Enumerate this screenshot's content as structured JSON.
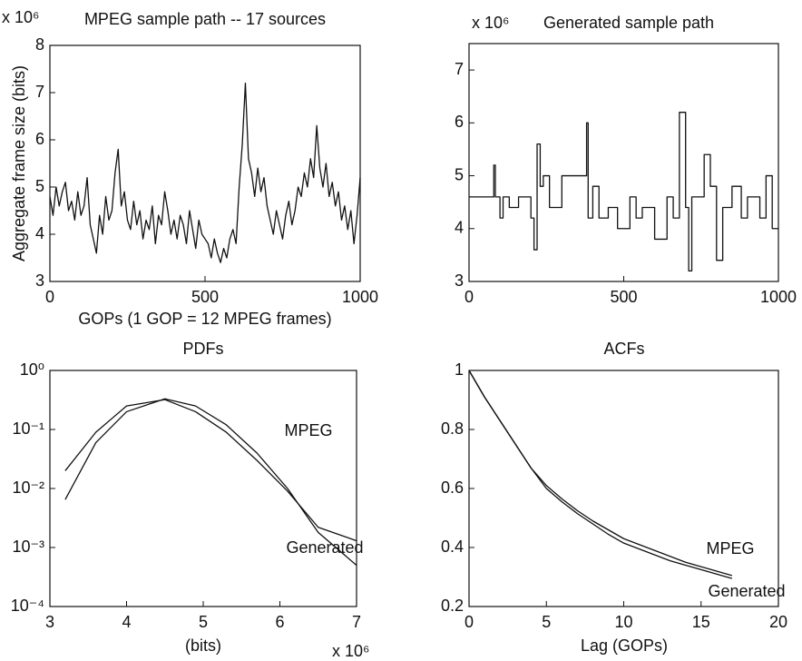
{
  "chart_data": [
    {
      "type": "line",
      "title": "MPEG sample path -- 17 sources",
      "y_exponent_label": "x 10⁶",
      "x_label": "GOPs (1 GOP = 12 MPEG frames)",
      "y_label": "Aggregate frame size (bits)",
      "xlim": [
        0,
        1000
      ],
      "xticks": [
        0,
        500,
        1000
      ],
      "ylim": [
        3,
        8
      ],
      "yticks": [
        3,
        4,
        5,
        6,
        7,
        8
      ],
      "grid": false,
      "x": [
        0,
        10,
        20,
        30,
        40,
        50,
        60,
        70,
        80,
        90,
        100,
        110,
        120,
        130,
        140,
        150,
        160,
        170,
        180,
        190,
        200,
        210,
        220,
        230,
        240,
        250,
        260,
        270,
        280,
        290,
        300,
        310,
        320,
        330,
        340,
        350,
        360,
        370,
        380,
        390,
        400,
        410,
        420,
        430,
        440,
        450,
        460,
        470,
        480,
        490,
        500,
        510,
        520,
        530,
        540,
        550,
        560,
        570,
        580,
        590,
        600,
        610,
        620,
        630,
        640,
        650,
        660,
        670,
        680,
        690,
        700,
        710,
        720,
        730,
        740,
        750,
        760,
        770,
        780,
        790,
        800,
        810,
        820,
        830,
        840,
        850,
        860,
        870,
        880,
        890,
        900,
        910,
        920,
        930,
        940,
        950,
        960,
        970,
        980,
        990,
        1000
      ],
      "series": [
        {
          "name": "MPEG",
          "color": "#111111",
          "values": [
            4.8,
            4.4,
            5.0,
            4.6,
            4.9,
            5.1,
            4.5,
            4.7,
            4.3,
            4.9,
            4.4,
            4.6,
            5.2,
            4.2,
            3.9,
            3.6,
            4.4,
            4.0,
            4.8,
            4.3,
            4.5,
            5.3,
            5.8,
            4.6,
            4.9,
            4.3,
            4.1,
            4.7,
            4.2,
            4.5,
            3.9,
            4.3,
            4.1,
            4.6,
            3.8,
            4.4,
            4.2,
            4.9,
            4.5,
            4.0,
            4.3,
            3.9,
            4.4,
            4.2,
            3.8,
            4.5,
            4.1,
            3.7,
            4.3,
            4.0,
            3.9,
            3.8,
            3.5,
            3.9,
            3.6,
            3.4,
            3.7,
            3.5,
            3.9,
            4.1,
            3.8,
            5.0,
            5.9,
            7.2,
            5.6,
            5.3,
            4.8,
            5.4,
            4.9,
            5.2,
            4.6,
            4.3,
            4.0,
            4.5,
            4.2,
            3.9,
            4.4,
            4.7,
            4.2,
            4.5,
            5.0,
            4.8,
            5.3,
            5.0,
            5.6,
            5.2,
            6.3,
            5.4,
            5.0,
            5.5,
            4.8,
            5.1,
            4.6,
            4.9,
            4.3,
            4.6,
            4.1,
            4.5,
            3.8,
            4.4,
            5.2
          ]
        }
      ]
    },
    {
      "type": "line",
      "title": "Generated sample path",
      "y_exponent_label": "x 10⁶",
      "xlim": [
        0,
        1000
      ],
      "xticks": [
        0,
        500,
        1000
      ],
      "ylim": [
        3,
        7.5
      ],
      "yticks": [
        3,
        4,
        5,
        6,
        7
      ],
      "grid": false,
      "x": [
        0,
        80,
        80,
        85,
        85,
        100,
        100,
        110,
        110,
        130,
        130,
        160,
        160,
        200,
        200,
        210,
        210,
        220,
        220,
        230,
        230,
        240,
        240,
        260,
        260,
        300,
        300,
        380,
        380,
        385,
        385,
        400,
        400,
        420,
        420,
        450,
        450,
        480,
        480,
        520,
        520,
        540,
        540,
        560,
        560,
        600,
        600,
        640,
        640,
        660,
        660,
        680,
        680,
        700,
        700,
        710,
        710,
        720,
        720,
        760,
        760,
        780,
        780,
        800,
        800,
        820,
        820,
        850,
        850,
        880,
        880,
        900,
        900,
        940,
        940,
        960,
        960,
        980,
        980,
        1000
      ],
      "series": [
        {
          "name": "Generated",
          "color": "#111111",
          "values": [
            4.6,
            4.6,
            5.2,
            5.2,
            4.6,
            4.6,
            4.2,
            4.2,
            4.6,
            4.6,
            4.4,
            4.4,
            4.6,
            4.6,
            4.2,
            4.2,
            3.6,
            3.6,
            5.6,
            5.6,
            4.8,
            4.8,
            5.0,
            5.0,
            4.4,
            4.4,
            5.0,
            5.0,
            6.0,
            6.0,
            4.2,
            4.2,
            4.8,
            4.8,
            4.2,
            4.2,
            4.4,
            4.4,
            4.0,
            4.0,
            4.6,
            4.6,
            4.2,
            4.2,
            4.4,
            4.4,
            3.8,
            3.8,
            4.6,
            4.6,
            4.2,
            4.2,
            6.2,
            6.2,
            4.4,
            4.4,
            3.2,
            3.2,
            4.6,
            4.6,
            5.4,
            5.4,
            4.8,
            4.8,
            3.4,
            3.4,
            4.4,
            4.4,
            4.8,
            4.8,
            4.2,
            4.2,
            4.6,
            4.6,
            4.2,
            4.2,
            5.0,
            5.0,
            4.0,
            4.0
          ]
        }
      ]
    },
    {
      "type": "line",
      "title": "PDFs",
      "x_label": "(bits)",
      "x_exponent_label": "x 10⁶",
      "yscale": "log",
      "xlim": [
        3,
        7
      ],
      "xticks": [
        3,
        4,
        5,
        6,
        7
      ],
      "ylim": [
        0.0001,
        1
      ],
      "yticks": [
        {
          "value": 0.0001,
          "label": "10⁻⁴"
        },
        {
          "value": 0.001,
          "label": "10⁻³"
        },
        {
          "value": 0.01,
          "label": "10⁻²"
        },
        {
          "value": 0.1,
          "label": "10⁻¹"
        },
        {
          "value": 1,
          "label": "10⁰"
        }
      ],
      "grid": false,
      "x": [
        3.2,
        3.6,
        4.0,
        4.5,
        4.9,
        5.3,
        5.7,
        6.1,
        6.5,
        7.0
      ],
      "series": [
        {
          "name": "MPEG",
          "color": "#111111",
          "values": [
            0.02,
            0.09,
            0.25,
            0.32,
            0.2,
            0.09,
            0.03,
            0.009,
            0.0022,
            0.0013
          ]
        },
        {
          "name": "Generated",
          "color": "#111111",
          "values": [
            0.0065,
            0.06,
            0.2,
            0.33,
            0.25,
            0.12,
            0.04,
            0.01,
            0.0018,
            0.0005
          ]
        }
      ]
    },
    {
      "type": "line",
      "title": "ACFs",
      "x_label": "Lag (GOPs)",
      "xlim": [
        0,
        20
      ],
      "xticks": [
        0,
        5,
        10,
        15,
        20
      ],
      "ylim": [
        0.2,
        1
      ],
      "yticks": [
        0.2,
        0.4,
        0.6,
        0.8,
        1
      ],
      "grid": false,
      "x": [
        0,
        1,
        2,
        3,
        4,
        5,
        6,
        7,
        8,
        9,
        10,
        11,
        12,
        13,
        14,
        15,
        16,
        17
      ],
      "series": [
        {
          "name": "MPEG",
          "color": "#111111",
          "values": [
            1,
            0.91,
            0.83,
            0.75,
            0.67,
            0.61,
            0.565,
            0.525,
            0.49,
            0.46,
            0.43,
            0.41,
            0.39,
            0.37,
            0.35,
            0.335,
            0.32,
            0.305
          ]
        },
        {
          "name": "Generated",
          "color": "#111111",
          "values": [
            1,
            0.91,
            0.83,
            0.75,
            0.67,
            0.6,
            0.555,
            0.515,
            0.48,
            0.445,
            0.415,
            0.395,
            0.375,
            0.355,
            0.34,
            0.325,
            0.31,
            0.295
          ]
        }
      ]
    }
  ]
}
